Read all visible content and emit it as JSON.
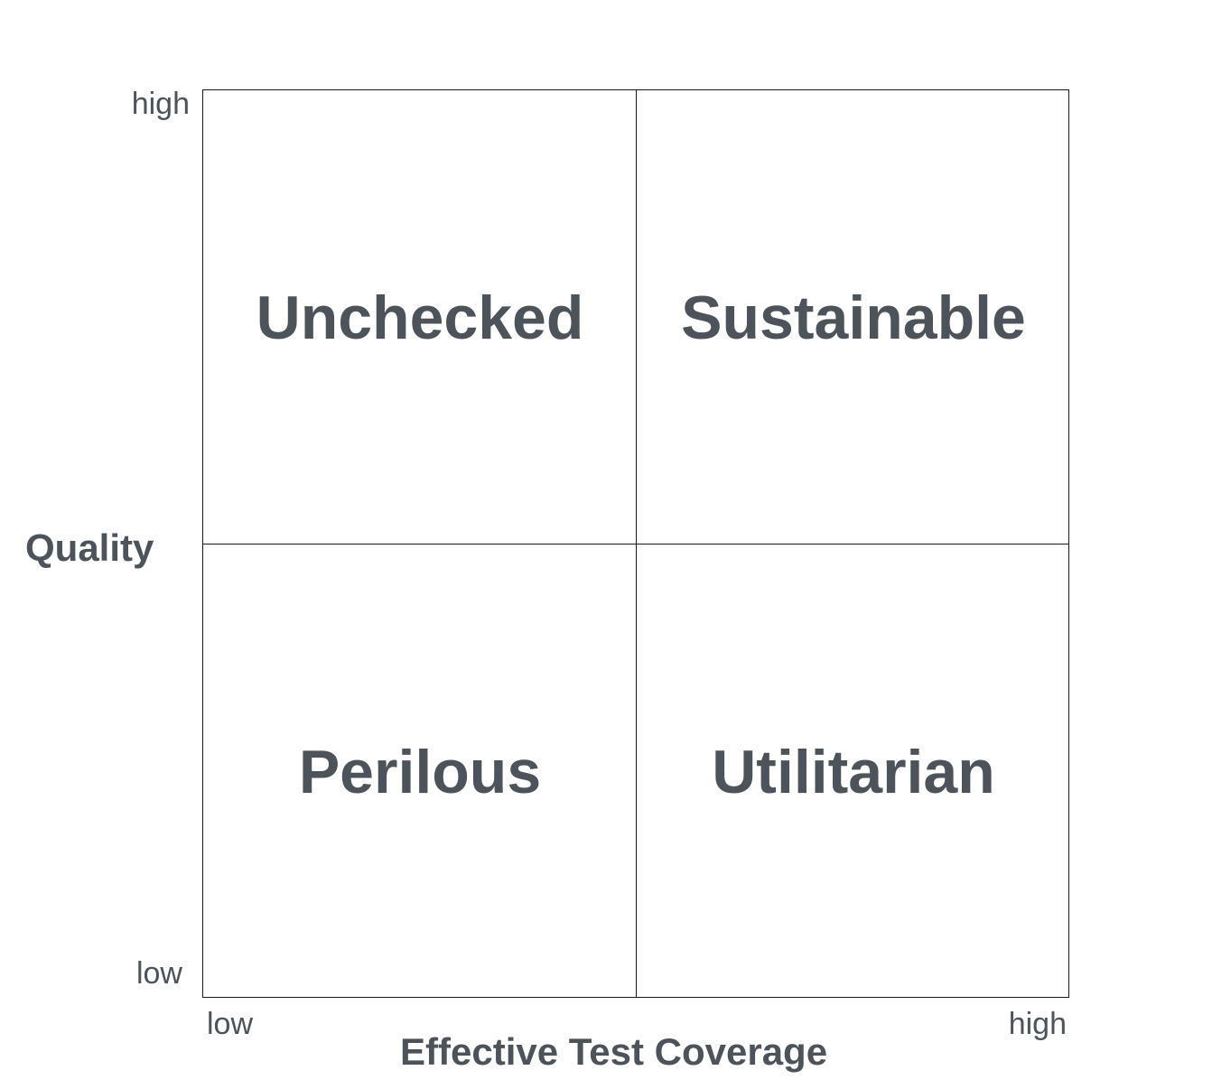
{
  "quadrants": {
    "top_left": "Unchecked",
    "top_right": "Sustainable",
    "bottom_left": "Perilous",
    "bottom_right": "Utilitarian"
  },
  "y_axis": {
    "title": "Quality",
    "high": "high",
    "low": "low"
  },
  "x_axis": {
    "title": "Effective Test Coverage",
    "low": "low",
    "high": "high"
  },
  "colors": {
    "text": "#4d535b",
    "lines": "#1a1a1a",
    "background": "#ffffff"
  }
}
